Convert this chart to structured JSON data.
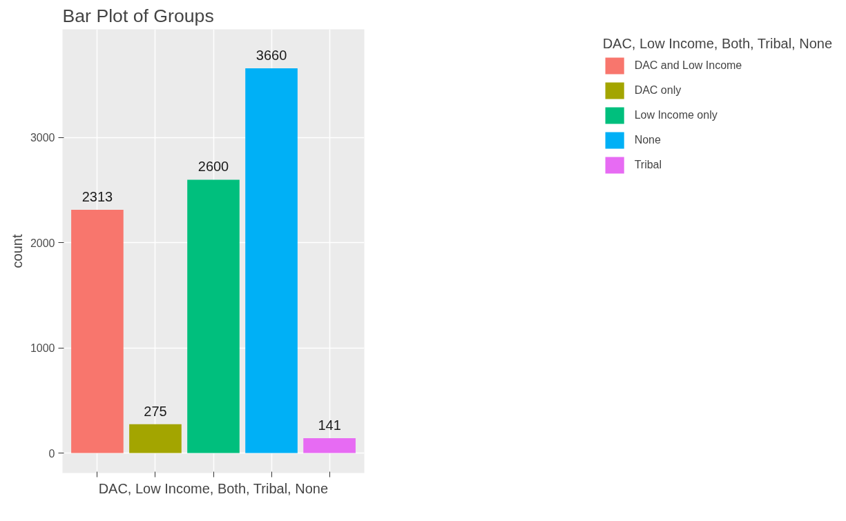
{
  "chart_data": {
    "type": "bar",
    "title": "Bar Plot of Groups",
    "xlabel": "DAC, Low Income, Both, Tribal, None",
    "ylabel": "count",
    "legend_title": "DAC, Low Income, Both, Tribal, None",
    "categories": [
      null,
      null,
      null,
      null,
      null
    ],
    "series": [
      {
        "name": "DAC and Low Income",
        "color": "#f8766d",
        "values": [
          2313,
          null,
          null,
          null,
          null
        ]
      },
      {
        "name": "DAC only",
        "color": "#a3a500",
        "values": [
          null,
          275,
          null,
          null,
          null
        ]
      },
      {
        "name": "Low Income only",
        "color": "#00bf7d",
        "values": [
          null,
          null,
          2600,
          null,
          null
        ]
      },
      {
        "name": "None",
        "color": "#00b0f6",
        "values": [
          null,
          null,
          null,
          3660,
          null
        ]
      },
      {
        "name": "Tribal",
        "color": "#e76bf3",
        "values": [
          null,
          null,
          null,
          null,
          141
        ]
      }
    ],
    "ylim": [
      -190,
      4030
    ],
    "yticks": [
      0,
      1000,
      2000,
      3000
    ],
    "grid": true,
    "legend": "right",
    "data_labels": true,
    "tick_labels": "y"
  }
}
